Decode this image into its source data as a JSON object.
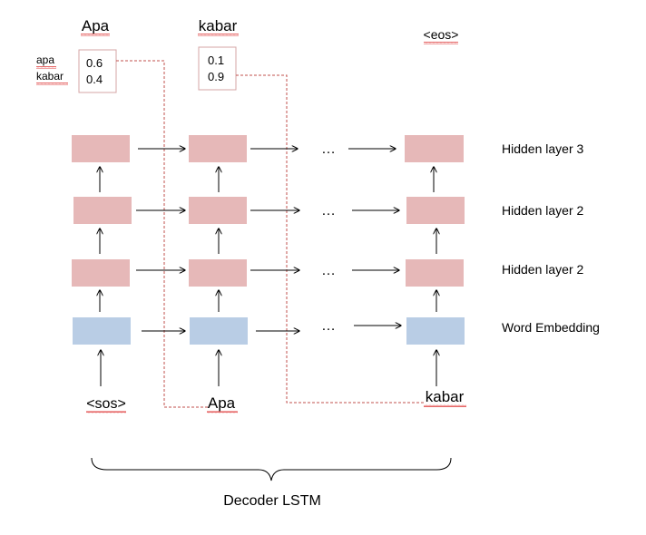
{
  "diagram": {
    "output_labels": [
      "Apa",
      "kabar",
      "<eos>"
    ],
    "prob_box_1": {
      "words": [
        "apa",
        "kabar"
      ],
      "values": [
        "0.6",
        "0.4"
      ]
    },
    "prob_box_2": {
      "values": [
        "0.1",
        "0.9"
      ]
    },
    "input_labels": [
      "<sos>",
      "Apa",
      "kabar"
    ],
    "ellipsis": "…",
    "row_labels": [
      "Hidden layer 3",
      "Hidden layer 2",
      "Hidden layer 2",
      "Word Embedding"
    ],
    "caption": "Decoder LSTM",
    "colors": {
      "hidden_fill": "#e6b8b8",
      "embedding_fill": "#b9cde5",
      "dashed_line": "#c0504d",
      "arrow": "#000000"
    }
  }
}
